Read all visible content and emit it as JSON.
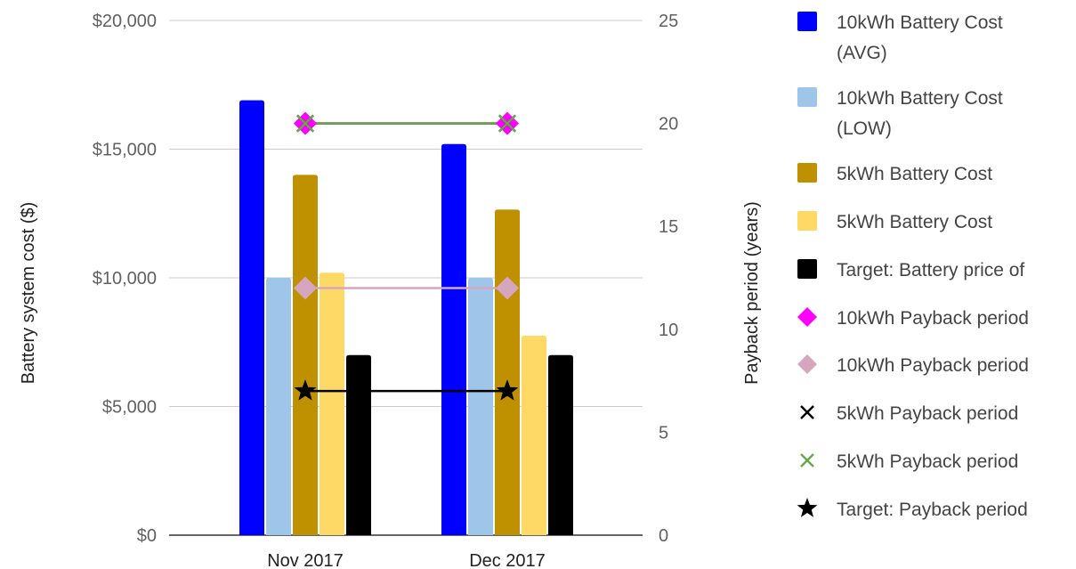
{
  "chart_data": {
    "type": "bar",
    "categories": [
      "Nov 2017",
      "Dec 2017"
    ],
    "y_left": {
      "label": "Battery system cost ($)",
      "range": [
        0,
        20000
      ],
      "ticks": [
        "$0",
        "$5,000",
        "$10,000",
        "$15,000",
        "$20,000"
      ],
      "tick_values": [
        0,
        5000,
        10000,
        15000,
        20000
      ]
    },
    "y_right": {
      "label": "Payback period (years)",
      "range": [
        0,
        25
      ],
      "ticks": [
        "0",
        "5",
        "10",
        "15",
        "20",
        "25"
      ],
      "tick_values": [
        0,
        5,
        10,
        15,
        20,
        25
      ]
    },
    "grid": true,
    "legend_position": "right",
    "bar_series": [
      {
        "name": "10kWh Battery Cost (AVG)",
        "color": "#0000ff",
        "values": [
          16900,
          15200
        ]
      },
      {
        "name": "10kWh Battery Cost (LOW)",
        "color": "#9fc5e8",
        "values": [
          10000,
          10000
        ]
      },
      {
        "name": "5kWh Battery Cost",
        "color": "#bf9000",
        "values": [
          14000,
          12650
        ]
      },
      {
        "name": "5kWh Battery Cost",
        "color": "#ffd966",
        "values": [
          10200,
          7750
        ]
      },
      {
        "name": "Target: Battery price of",
        "color": "#000000",
        "values": [
          7000,
          7000
        ]
      }
    ],
    "line_series": [
      {
        "name": "10kWh Payback period",
        "color": "#ff00ff",
        "marker": "diamond",
        "values": [
          20,
          20
        ]
      },
      {
        "name": "10kWh Payback period",
        "color": "#d5a6bd",
        "marker": "diamond",
        "values": [
          12,
          12
        ]
      },
      {
        "name": "5kWh Payback period",
        "color": "#000000",
        "marker": "x",
        "values": [
          20,
          20
        ]
      },
      {
        "name": "5kWh Payback period",
        "color": "#6aa84f",
        "marker": "x",
        "values": [
          20,
          20
        ]
      },
      {
        "name": "Target: Payback period",
        "color": "#000000",
        "marker": "star",
        "values": [
          7,
          7
        ]
      }
    ],
    "legend": [
      {
        "label_lines": [
          "10kWh Battery Cost",
          "(AVG)"
        ],
        "color": "#0000ff",
        "marker": "square"
      },
      {
        "label_lines": [
          "10kWh Battery Cost",
          "(LOW)"
        ],
        "color": "#9fc5e8",
        "marker": "square"
      },
      {
        "label_lines": [
          "5kWh Battery Cost"
        ],
        "color": "#bf9000",
        "marker": "square"
      },
      {
        "label_lines": [
          "5kWh Battery Cost"
        ],
        "color": "#ffd966",
        "marker": "square"
      },
      {
        "label_lines": [
          "Target: Battery price of"
        ],
        "color": "#000000",
        "marker": "square"
      },
      {
        "label_lines": [
          "10kWh Payback period"
        ],
        "color": "#ff00ff",
        "marker": "diamond"
      },
      {
        "label_lines": [
          "10kWh Payback period"
        ],
        "color": "#d5a6bd",
        "marker": "diamond"
      },
      {
        "label_lines": [
          "5kWh Payback period"
        ],
        "color": "#000000",
        "marker": "x"
      },
      {
        "label_lines": [
          "5kWh Payback period"
        ],
        "color": "#6aa84f",
        "marker": "x"
      },
      {
        "label_lines": [
          "Target: Payback period"
        ],
        "color": "#000000",
        "marker": "star"
      }
    ]
  }
}
